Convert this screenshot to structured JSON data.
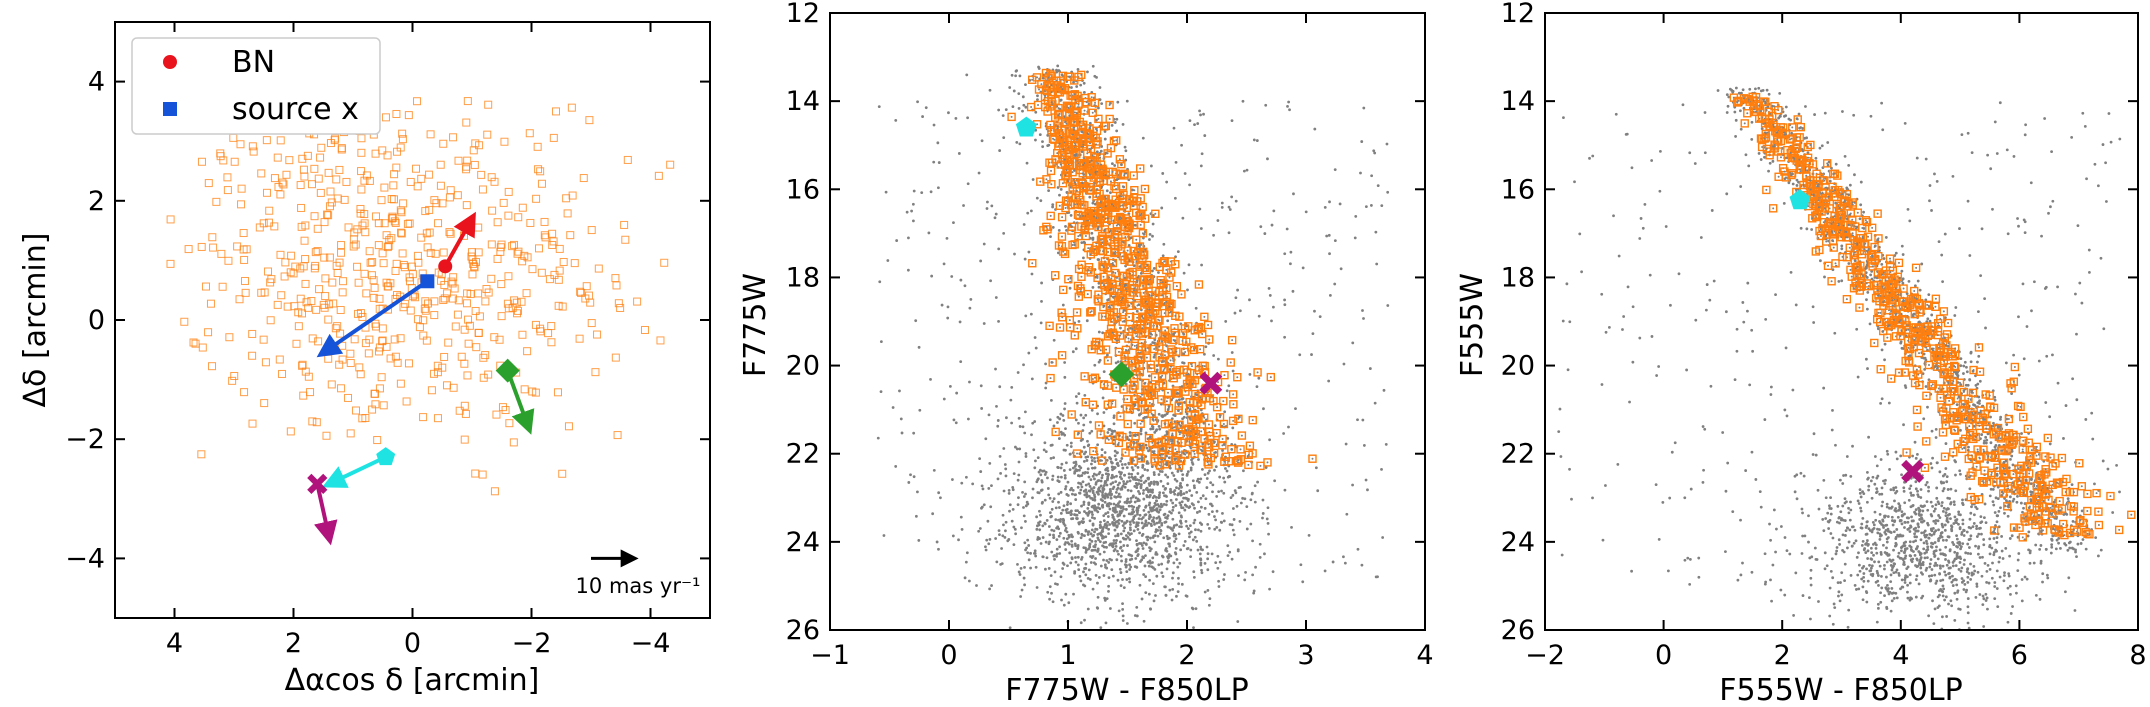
{
  "colors": {
    "cluster_member": "#ff7f0e",
    "field_star": "#808080",
    "BN": "#e8131c",
    "source_x": "#1553d9",
    "green_source": "#2ca02c",
    "cyan_source": "#1fe3e3",
    "magenta_source": "#b0137c",
    "scale_arrow": "#000000"
  },
  "chart_data": [
    {
      "type": "scatter",
      "panel": "left",
      "xlabel": "Δαcos δ [arcmin]",
      "ylabel": "Δδ [arcmin]",
      "xlim": [
        5,
        -5
      ],
      "ylim": [
        -5,
        5
      ],
      "xticks": [
        4,
        2,
        0,
        -2,
        -4
      ],
      "yticks": [
        -4,
        -2,
        0,
        2,
        4
      ],
      "legend": {
        "placement": "top-left",
        "entries": [
          {
            "label": "BN",
            "marker": "circle",
            "color": "#e8131c"
          },
          {
            "label": "source x",
            "marker": "square",
            "color": "#1553d9"
          }
        ]
      },
      "members": {
        "description_count": 600,
        "center": [
          0.3,
          0.9
        ],
        "spread": [
          1.8,
          1.5
        ],
        "x_range": [
          4.2,
          -4.6
        ],
        "y_range": [
          -3.2,
          3.7
        ]
      },
      "sources": [
        {
          "name": "BN",
          "x": -0.55,
          "y": 0.9,
          "pm_dx": -0.45,
          "pm_dy": 0.8
        },
        {
          "name": "source x",
          "x": -0.25,
          "y": 0.65,
          "pm_dx": 1.75,
          "pm_dy": -1.2
        },
        {
          "name": "green",
          "x": -1.6,
          "y": -0.85,
          "pm_dx": -0.35,
          "pm_dy": -0.95
        },
        {
          "name": "cyan",
          "x": 0.45,
          "y": -2.3,
          "pm_dx": 0.95,
          "pm_dy": -0.45
        },
        {
          "name": "magenta",
          "x": 1.6,
          "y": -2.75,
          "pm_dx": -0.2,
          "pm_dy": -0.9
        }
      ],
      "annotation": {
        "text": "10 mas yr⁻¹",
        "x": -3.3,
        "y": -4.45,
        "arrow_from": [
          -3.0,
          -4.0
        ],
        "arrow_to": [
          -3.7,
          -4.0
        ]
      }
    },
    {
      "type": "scatter",
      "panel": "middle",
      "xlabel": "F775W - F850LP",
      "ylabel": "F775W",
      "xlim": [
        -1,
        4
      ],
      "ylim": [
        26,
        12
      ],
      "xticks": [
        -1,
        0,
        1,
        2,
        3,
        4
      ],
      "yticks": [
        12,
        14,
        16,
        18,
        20,
        22,
        24,
        26
      ],
      "field_stars": {
        "count": 3000
      },
      "members": {
        "count": 850
      },
      "sources": [
        {
          "name": "cyan",
          "x": 0.65,
          "y": 14.6
        },
        {
          "name": "green",
          "x": 1.45,
          "y": 20.2
        },
        {
          "name": "magenta",
          "x": 2.2,
          "y": 20.4
        }
      ]
    },
    {
      "type": "scatter",
      "panel": "right",
      "xlabel": "F555W - F850LP",
      "ylabel": "F555W",
      "xlim": [
        -2,
        8
      ],
      "ylim": [
        26,
        12
      ],
      "xticks": [
        -2,
        0,
        2,
        4,
        6,
        8
      ],
      "yticks": [
        12,
        14,
        16,
        18,
        20,
        22,
        24,
        26
      ],
      "field_stars": {
        "count": 2400
      },
      "members": {
        "count": 700
      },
      "sources": [
        {
          "name": "cyan",
          "x": 2.3,
          "y": 16.25
        },
        {
          "name": "magenta",
          "x": 4.2,
          "y": 22.4
        }
      ]
    }
  ]
}
